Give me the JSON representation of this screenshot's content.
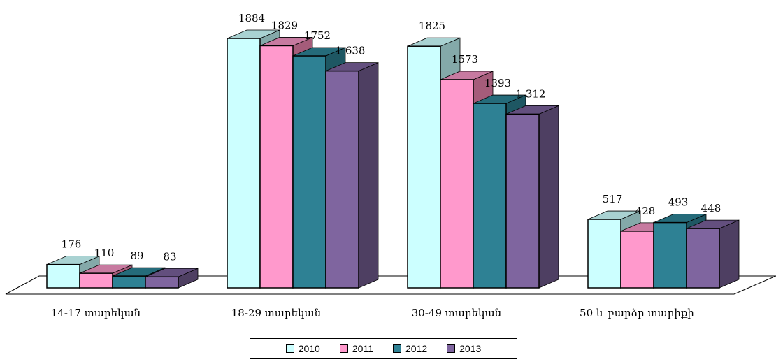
{
  "chart_data": {
    "type": "bar",
    "categories": [
      "14-17 տարեկան",
      "18-29 տարեկան",
      "30-49 տարեկան",
      "50 և բարձր տարիքի"
    ],
    "series": [
      {
        "name": "2010",
        "values": [
          176,
          1884,
          1825,
          517
        ],
        "labels": [
          "176",
          "1884",
          "1825",
          "517"
        ],
        "color": "#ccffff",
        "side": "#84a9a9",
        "top": "#a9d2d2"
      },
      {
        "name": "2011",
        "values": [
          110,
          1829,
          1573,
          428
        ],
        "labels": [
          "110",
          "1829",
          "1573",
          "428"
        ],
        "color": "#ff99cc",
        "side": "#a55c7a",
        "top": "#c77aa0"
      },
      {
        "name": "2012",
        "values": [
          89,
          1752,
          1393,
          493
        ],
        "labels": [
          "89",
          "1752",
          "1393",
          "493"
        ],
        "color": "#2e8194",
        "side": "#1e5763",
        "top": "#256b7a"
      },
      {
        "name": "2013",
        "values": [
          83,
          1638,
          1312,
          448
        ],
        "labels": [
          "83",
          "1 638",
          "1 312",
          "448"
        ],
        "color": "#7f659f",
        "side": "#4e3f62",
        "top": "#634f7e"
      }
    ],
    "title": "",
    "xlabel": "",
    "ylabel": "",
    "ylim": [
      0,
      1900
    ],
    "grid": false,
    "legend_position": "bottom",
    "three_d": true
  }
}
